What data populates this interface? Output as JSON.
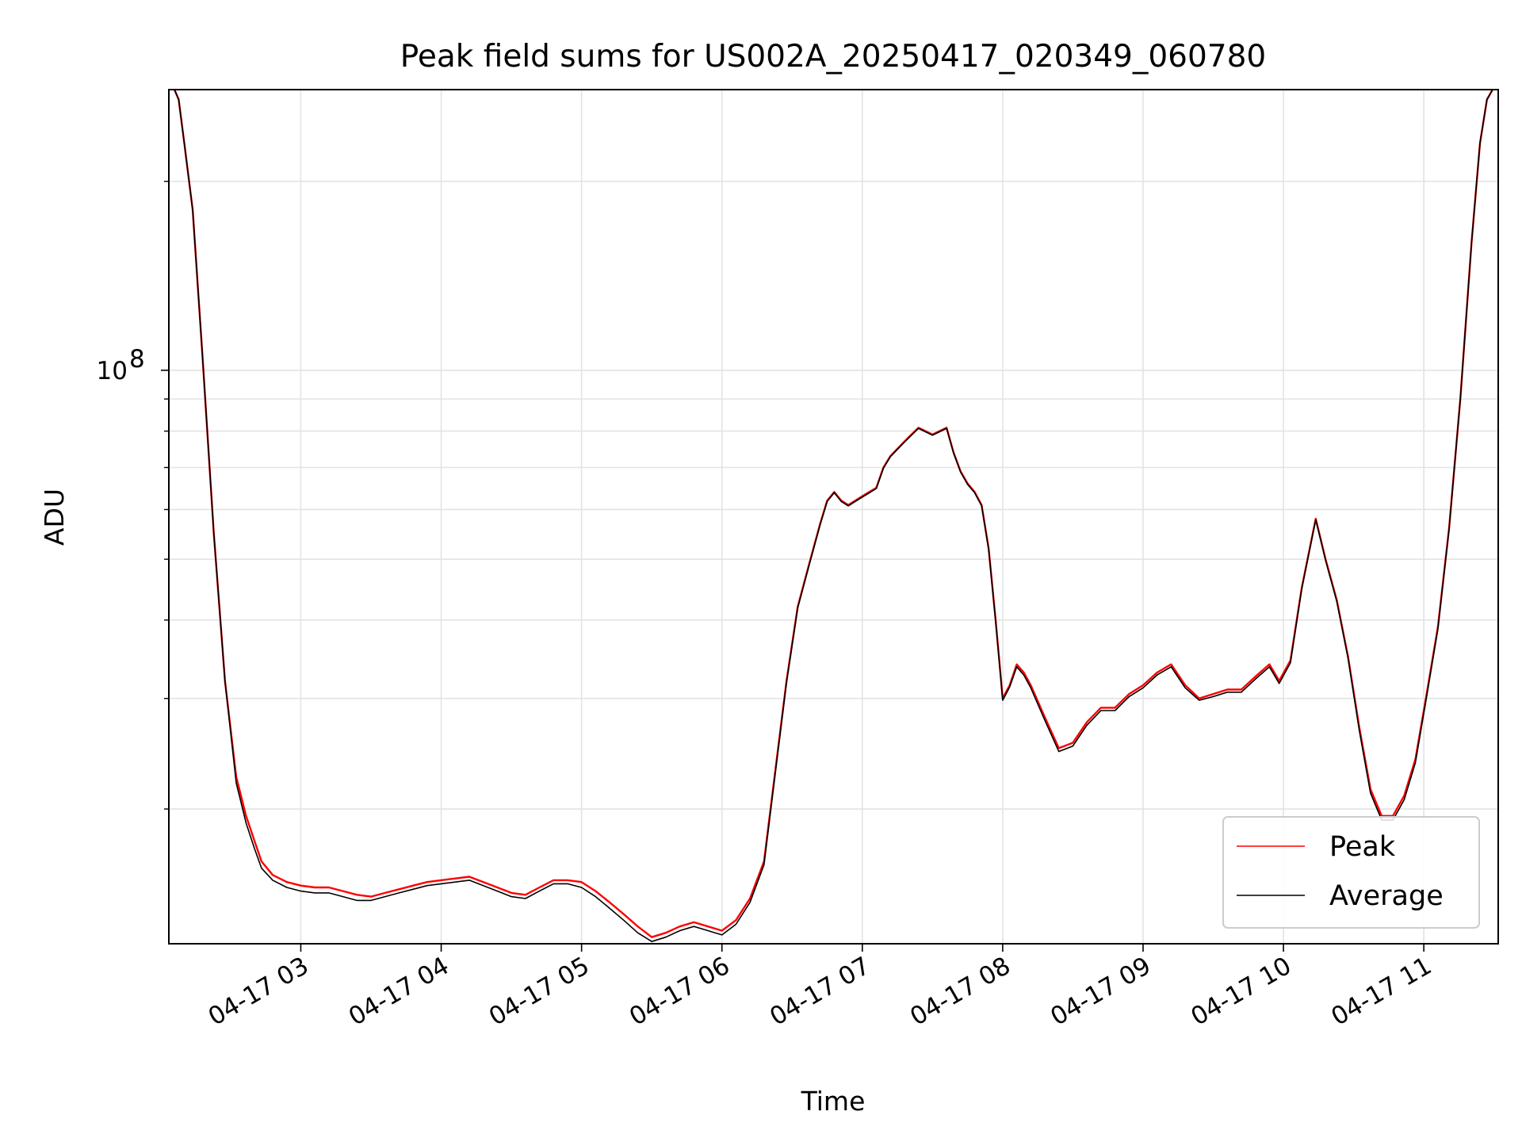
{
  "chart_data": {
    "type": "line",
    "title": "Peak field sums for US002A_20250417_020349_060780",
    "xlabel": "Time",
    "ylabel": "ADU",
    "yscale": "log",
    "grid": true,
    "legend_position": "lower-right",
    "x_unit": "hour of 2025-04-17",
    "xlim": [
      2.06,
      11.53
    ],
    "ylim": [
      12200000,
      280000000
    ],
    "ytick_major": [
      {
        "value": 100000000,
        "base": "10",
        "exponent": "8"
      }
    ],
    "ytick_minor": [
      20000000,
      30000000,
      40000000,
      50000000,
      60000000,
      70000000,
      80000000,
      90000000,
      200000000
    ],
    "xticks": [
      {
        "value": 3,
        "label": "04-17 03"
      },
      {
        "value": 4,
        "label": "04-17 04"
      },
      {
        "value": 5,
        "label": "04-17 05"
      },
      {
        "value": 6,
        "label": "04-17 06"
      },
      {
        "value": 7,
        "label": "04-17 07"
      },
      {
        "value": 8,
        "label": "04-17 08"
      },
      {
        "value": 9,
        "label": "04-17 09"
      },
      {
        "value": 10,
        "label": "04-17 10"
      },
      {
        "value": 11,
        "label": "04-17 11"
      }
    ],
    "series": [
      {
        "name": "Peak",
        "color": "#ff0000",
        "x": [
          2.1,
          2.13,
          2.17,
          2.23,
          2.3,
          2.38,
          2.46,
          2.54,
          2.61,
          2.67,
          2.72,
          2.8,
          2.9,
          3.0,
          3.1,
          3.2,
          3.3,
          3.4,
          3.5,
          3.6,
          3.7,
          3.8,
          3.9,
          4.0,
          4.1,
          4.2,
          4.3,
          4.4,
          4.5,
          4.6,
          4.7,
          4.8,
          4.9,
          5.0,
          5.1,
          5.2,
          5.3,
          5.4,
          5.5,
          5.6,
          5.7,
          5.8,
          5.9,
          6.0,
          6.1,
          6.2,
          6.3,
          6.38,
          6.46,
          6.54,
          6.62,
          6.7,
          6.75,
          6.8,
          6.85,
          6.9,
          6.95,
          7.0,
          7.05,
          7.1,
          7.15,
          7.2,
          7.25,
          7.3,
          7.35,
          7.4,
          7.45,
          7.5,
          7.55,
          7.6,
          7.65,
          7.7,
          7.75,
          7.8,
          7.85,
          7.9,
          7.95,
          8.0,
          8.05,
          8.1,
          8.15,
          8.2,
          8.3,
          8.4,
          8.5,
          8.6,
          8.7,
          8.8,
          8.9,
          9.0,
          9.1,
          9.2,
          9.3,
          9.4,
          9.5,
          9.6,
          9.7,
          9.8,
          9.9,
          9.97,
          10.05,
          10.13,
          10.23,
          10.3,
          10.38,
          10.46,
          10.54,
          10.62,
          10.7,
          10.78,
          10.86,
          10.94,
          11.02,
          11.1,
          11.18,
          11.26,
          11.34,
          11.4,
          11.45,
          11.49
        ],
        "y": [
          280000000,
          270000000,
          230000000,
          180000000,
          105000000,
          55000000,
          32000000,
          22500000,
          19500000,
          17800000,
          16500000,
          15700000,
          15300000,
          15100000,
          15000000,
          15000000,
          14800000,
          14600000,
          14500000,
          14700000,
          14900000,
          15100000,
          15300000,
          15400000,
          15500000,
          15600000,
          15300000,
          15000000,
          14700000,
          14600000,
          15000000,
          15400000,
          15400000,
          15300000,
          14800000,
          14200000,
          13600000,
          13000000,
          12500000,
          12700000,
          13000000,
          13200000,
          13000000,
          12800000,
          13300000,
          14400000,
          16500000,
          23000000,
          32000000,
          42000000,
          49000000,
          57000000,
          62000000,
          64000000,
          62000000,
          61000000,
          62000000,
          63000000,
          64000000,
          65000000,
          70000000,
          73000000,
          75000000,
          77000000,
          79000000,
          81000000,
          80000000,
          79000000,
          80000000,
          81000000,
          74000000,
          69000000,
          66000000,
          64000000,
          61000000,
          52000000,
          40000000,
          30000000,
          31500000,
          34000000,
          33000000,
          31500000,
          28000000,
          25000000,
          25500000,
          27500000,
          29000000,
          29000000,
          30500000,
          31500000,
          33000000,
          34000000,
          31500000,
          30000000,
          30500000,
          31000000,
          31000000,
          32500000,
          34000000,
          32000000,
          34500000,
          45000000,
          58000000,
          50000000,
          43000000,
          35000000,
          27000000,
          21500000,
          19500000,
          19500000,
          21000000,
          24000000,
          30500000,
          39000000,
          56000000,
          90000000,
          160000000,
          230000000,
          270000000,
          280000000
        ]
      },
      {
        "name": "Average",
        "color": "#000000",
        "x": [
          2.1,
          2.13,
          2.17,
          2.23,
          2.3,
          2.38,
          2.46,
          2.54,
          2.61,
          2.67,
          2.72,
          2.8,
          2.9,
          3.0,
          3.1,
          3.2,
          3.3,
          3.4,
          3.5,
          3.6,
          3.7,
          3.8,
          3.9,
          4.0,
          4.1,
          4.2,
          4.3,
          4.4,
          4.5,
          4.6,
          4.7,
          4.8,
          4.9,
          5.0,
          5.1,
          5.2,
          5.3,
          5.4,
          5.5,
          5.6,
          5.7,
          5.8,
          5.9,
          6.0,
          6.1,
          6.2,
          6.3,
          6.38,
          6.46,
          6.54,
          6.62,
          6.7,
          6.75,
          6.8,
          6.85,
          6.9,
          6.95,
          7.0,
          7.05,
          7.1,
          7.15,
          7.2,
          7.25,
          7.3,
          7.35,
          7.4,
          7.45,
          7.5,
          7.55,
          7.6,
          7.65,
          7.7,
          7.75,
          7.8,
          7.85,
          7.9,
          7.95,
          8.0,
          8.05,
          8.1,
          8.15,
          8.2,
          8.3,
          8.4,
          8.5,
          8.6,
          8.7,
          8.8,
          8.9,
          9.0,
          9.1,
          9.2,
          9.3,
          9.4,
          9.5,
          9.6,
          9.7,
          9.8,
          9.9,
          9.97,
          10.05,
          10.13,
          10.23,
          10.3,
          10.38,
          10.46,
          10.54,
          10.62,
          10.7,
          10.78,
          10.86,
          10.94,
          11.02,
          11.1,
          11.18,
          11.26,
          11.34,
          11.4,
          11.45,
          11.49
        ],
        "y": [
          280000000,
          270000000,
          230000000,
          180000000,
          105000000,
          55000000,
          32000000,
          22000000,
          19000000,
          17300000,
          16100000,
          15400000,
          15000000,
          14800000,
          14700000,
          14700000,
          14500000,
          14300000,
          14300000,
          14500000,
          14700000,
          14900000,
          15100000,
          15200000,
          15300000,
          15400000,
          15100000,
          14800000,
          14500000,
          14400000,
          14800000,
          15200000,
          15200000,
          15000000,
          14500000,
          13900000,
          13300000,
          12700000,
          12300000,
          12500000,
          12800000,
          13000000,
          12800000,
          12600000,
          13100000,
          14200000,
          16300000,
          22800000,
          31800000,
          41800000,
          48800000,
          56800000,
          61800000,
          63800000,
          61800000,
          60800000,
          61800000,
          62800000,
          63800000,
          64800000,
          69800000,
          72800000,
          74800000,
          76800000,
          78800000,
          80800000,
          79800000,
          78800000,
          79800000,
          80800000,
          73800000,
          68800000,
          65800000,
          63800000,
          60800000,
          51800000,
          39800000,
          29800000,
          31300000,
          33700000,
          32700000,
          31200000,
          27700000,
          24700000,
          25200000,
          27200000,
          28700000,
          28700000,
          30200000,
          31200000,
          32700000,
          33700000,
          31200000,
          29800000,
          30200000,
          30700000,
          30700000,
          32200000,
          33700000,
          31700000,
          34200000,
          44800000,
          57800000,
          49800000,
          42800000,
          34800000,
          26700000,
          21200000,
          19200000,
          19200000,
          20700000,
          23700000,
          30200000,
          38700000,
          55800000,
          90000000,
          160000000,
          230000000,
          270000000,
          280000000
        ]
      }
    ]
  }
}
